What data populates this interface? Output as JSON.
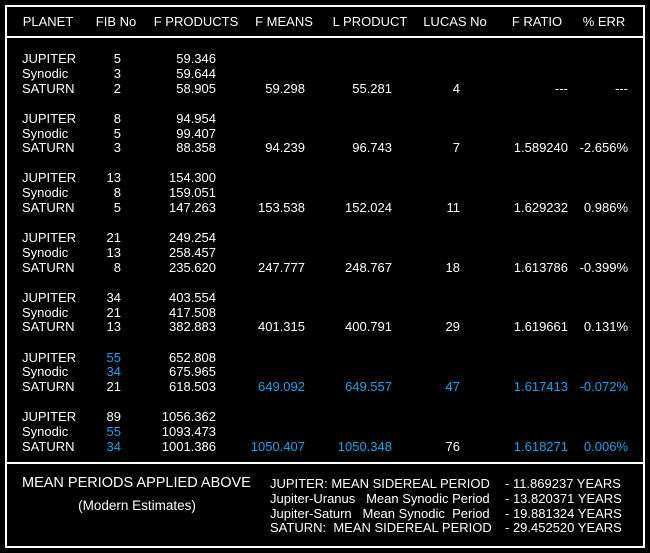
{
  "highlight_color": "#1aa3e8",
  "header": [
    "PLANET",
    "FIB No",
    "F PRODUCTS",
    "F MEANS",
    "L PRODUCT",
    "LUCAS No",
    "F RATIO",
    "% ERR"
  ],
  "groups": [
    [
      {
        "planet": "JUPITER",
        "fib": "5",
        "product": "59.346"
      },
      {
        "planet": "Synodic",
        "fib": "3",
        "product": "59.644"
      },
      {
        "planet": "SATURN",
        "fib": "2",
        "product": "58.905",
        "mean": "59.298",
        "lproduct": "55.281",
        "lucas": "4",
        "ratio": "---",
        "err": "---"
      }
    ],
    [
      {
        "planet": "JUPITER",
        "fib": "8",
        "product": "94.954"
      },
      {
        "planet": "Synodic",
        "fib": "5",
        "product": "99.407"
      },
      {
        "planet": "SATURN",
        "fib": "3",
        "product": "88.358",
        "mean": "94.239",
        "lproduct": "96.743",
        "lucas": "7",
        "ratio": "1.589240",
        "err": "-2.656%"
      }
    ],
    [
      {
        "planet": "JUPITER",
        "fib": "13",
        "product": "154.300"
      },
      {
        "planet": "Synodic",
        "fib": "8",
        "product": "159.051"
      },
      {
        "planet": "SATURN",
        "fib": "5",
        "product": "147.263",
        "mean": "153.538",
        "lproduct": "152.024",
        "lucas": "11",
        "ratio": "1.629232",
        "err": "0.986%"
      }
    ],
    [
      {
        "planet": "JUPITER",
        "fib": "21",
        "product": "249.254"
      },
      {
        "planet": "Synodic",
        "fib": "13",
        "product": "258.457"
      },
      {
        "planet": "SATURN",
        "fib": "8",
        "product": "235.620",
        "mean": "247.777",
        "lproduct": "248.767",
        "lucas": "18",
        "ratio": "1.613786",
        "err": "-0.399%"
      }
    ],
    [
      {
        "planet": "JUPITER",
        "fib": "34",
        "product": "403.554"
      },
      {
        "planet": "Synodic",
        "fib": "21",
        "product": "417.508"
      },
      {
        "planet": "SATURN",
        "fib": "13",
        "product": "382.883",
        "mean": "401.315",
        "lproduct": "400.791",
        "lucas": "29",
        "ratio": "1.619661",
        "err": "0.131%"
      }
    ],
    [
      {
        "planet": "JUPITER",
        "fib": "55",
        "product": "652.808",
        "highlight": [
          "fib"
        ]
      },
      {
        "planet": "Synodic",
        "fib": "34",
        "product": "675.965",
        "highlight": [
          "fib"
        ]
      },
      {
        "planet": "SATURN",
        "fib": "21",
        "product": "618.503",
        "mean": "649.092",
        "lproduct": "649.557",
        "lucas": "47",
        "ratio": "1.617413",
        "err": "-0.072%",
        "highlight": [
          "mean",
          "lproduct",
          "lucas",
          "ratio",
          "err"
        ]
      }
    ],
    [
      {
        "planet": "JUPITER",
        "fib": "89",
        "product": "1056.362"
      },
      {
        "planet": "Synodic",
        "fib": "55",
        "product": "1093.473",
        "highlight": [
          "fib"
        ]
      },
      {
        "planet": "SATURN",
        "fib": "34",
        "product": "1001.386",
        "mean": "1050.407",
        "lproduct": "1050.348",
        "lucas": "76",
        "ratio": "1.618271",
        "err": "0.006%",
        "highlight": [
          "fib",
          "mean",
          "lproduct",
          "ratio",
          "err"
        ]
      }
    ]
  ],
  "footer": {
    "title": "MEAN PERIODS APPLIED ABOVE",
    "subtitle": "(Modern Estimates)",
    "periods": [
      {
        "label": "JUPITER: MEAN SIDEREAL PERIOD",
        "value": "- 11.869237 YEARS"
      },
      {
        "label": "Jupiter-Uranus   Mean Synodic Period",
        "value": "- 13.820371 YEARS"
      },
      {
        "label": "Jupiter-Saturn   Mean Synodic  Period",
        "value": "- 19.881324 YEARS"
      },
      {
        "label": "SATURN:  MEAN SIDEREAL PERIOD",
        "value": "- 29.452520 YEARS"
      }
    ]
  }
}
